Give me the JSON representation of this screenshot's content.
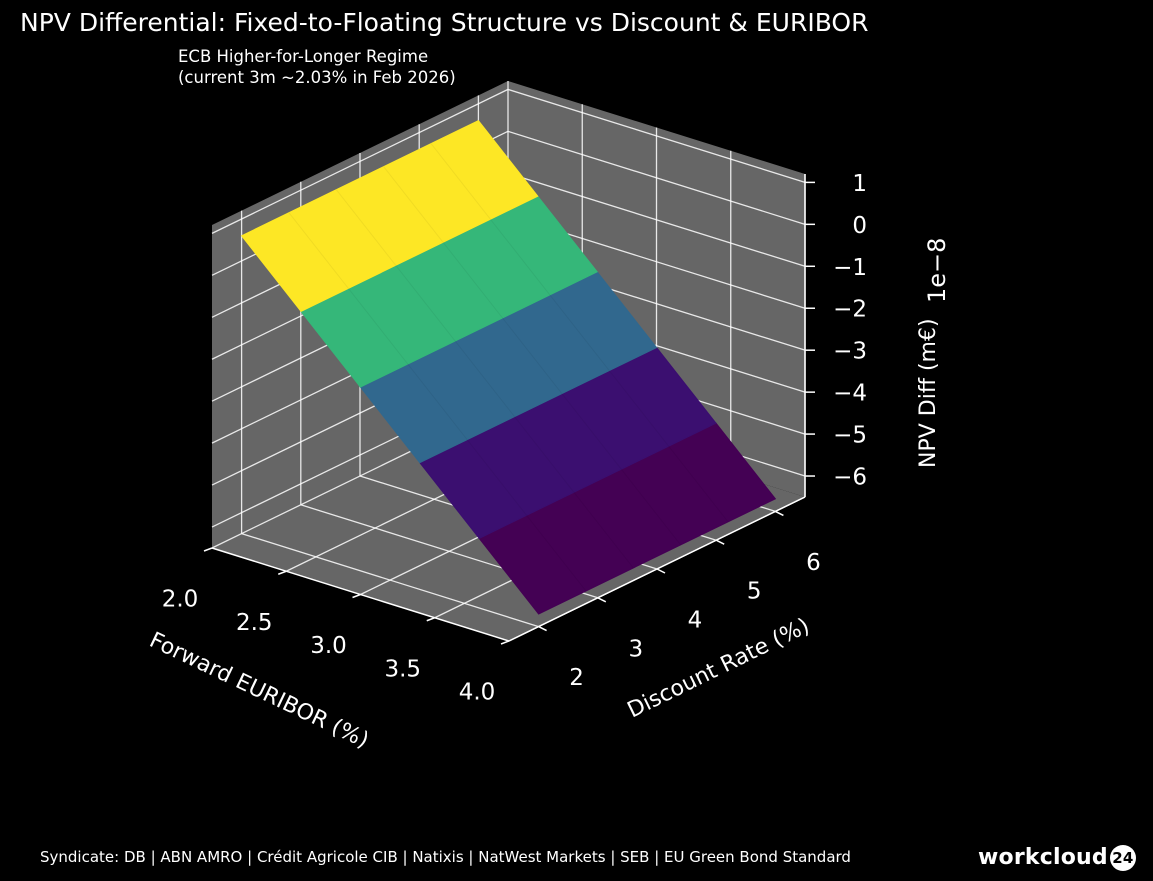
{
  "chart_data": {
    "type": "surface",
    "title": "NPV Differential: Fixed-to-Floating Structure vs Discount & EURIBOR",
    "subtitle_lines": [
      "ECB Higher-for-Longer Regime",
      "(current 3m ~2.03% in Feb 2026)"
    ],
    "xlabel": "Forward EURIBOR (%)",
    "ylabel": "Discount Rate (%)",
    "zlabel": "NPV Diff (m€)",
    "z_offset_label": "1e−8",
    "x_ticks": [
      "2.0",
      "2.5",
      "3.0",
      "3.5",
      "4.0"
    ],
    "y_ticks": [
      "2",
      "3",
      "4",
      "5",
      "6"
    ],
    "z_ticks": [
      "1",
      "0",
      "−1",
      "−2",
      "−3",
      "−4",
      "−5",
      "−6"
    ],
    "xlim": [
      2.0,
      4.0
    ],
    "ylim": [
      1.5,
      6.5
    ],
    "zlim": [
      -6.5,
      1.2
    ],
    "x": [
      2.0,
      2.5,
      3.0,
      3.5,
      4.0
    ],
    "y": [
      2.0,
      3.0,
      4.0,
      5.0,
      6.0
    ],
    "surface_z_by_x": [
      0.6,
      -1.1,
      -2.8,
      -4.5,
      -6.2
    ],
    "colormap": [
      "#440154",
      "#3b0f70",
      "#31688e",
      "#35b779",
      "#fde725"
    ],
    "pane_color": "#666666",
    "grid_color": "#ffffff"
  },
  "footer_text": "Syndicate: DB | ABN AMRO | Crédit Agricole CIB | Natixis | NatWest Markets | SEB | EU Green Bond Standard",
  "logo": {
    "text": "workcloud",
    "badge": "24"
  }
}
